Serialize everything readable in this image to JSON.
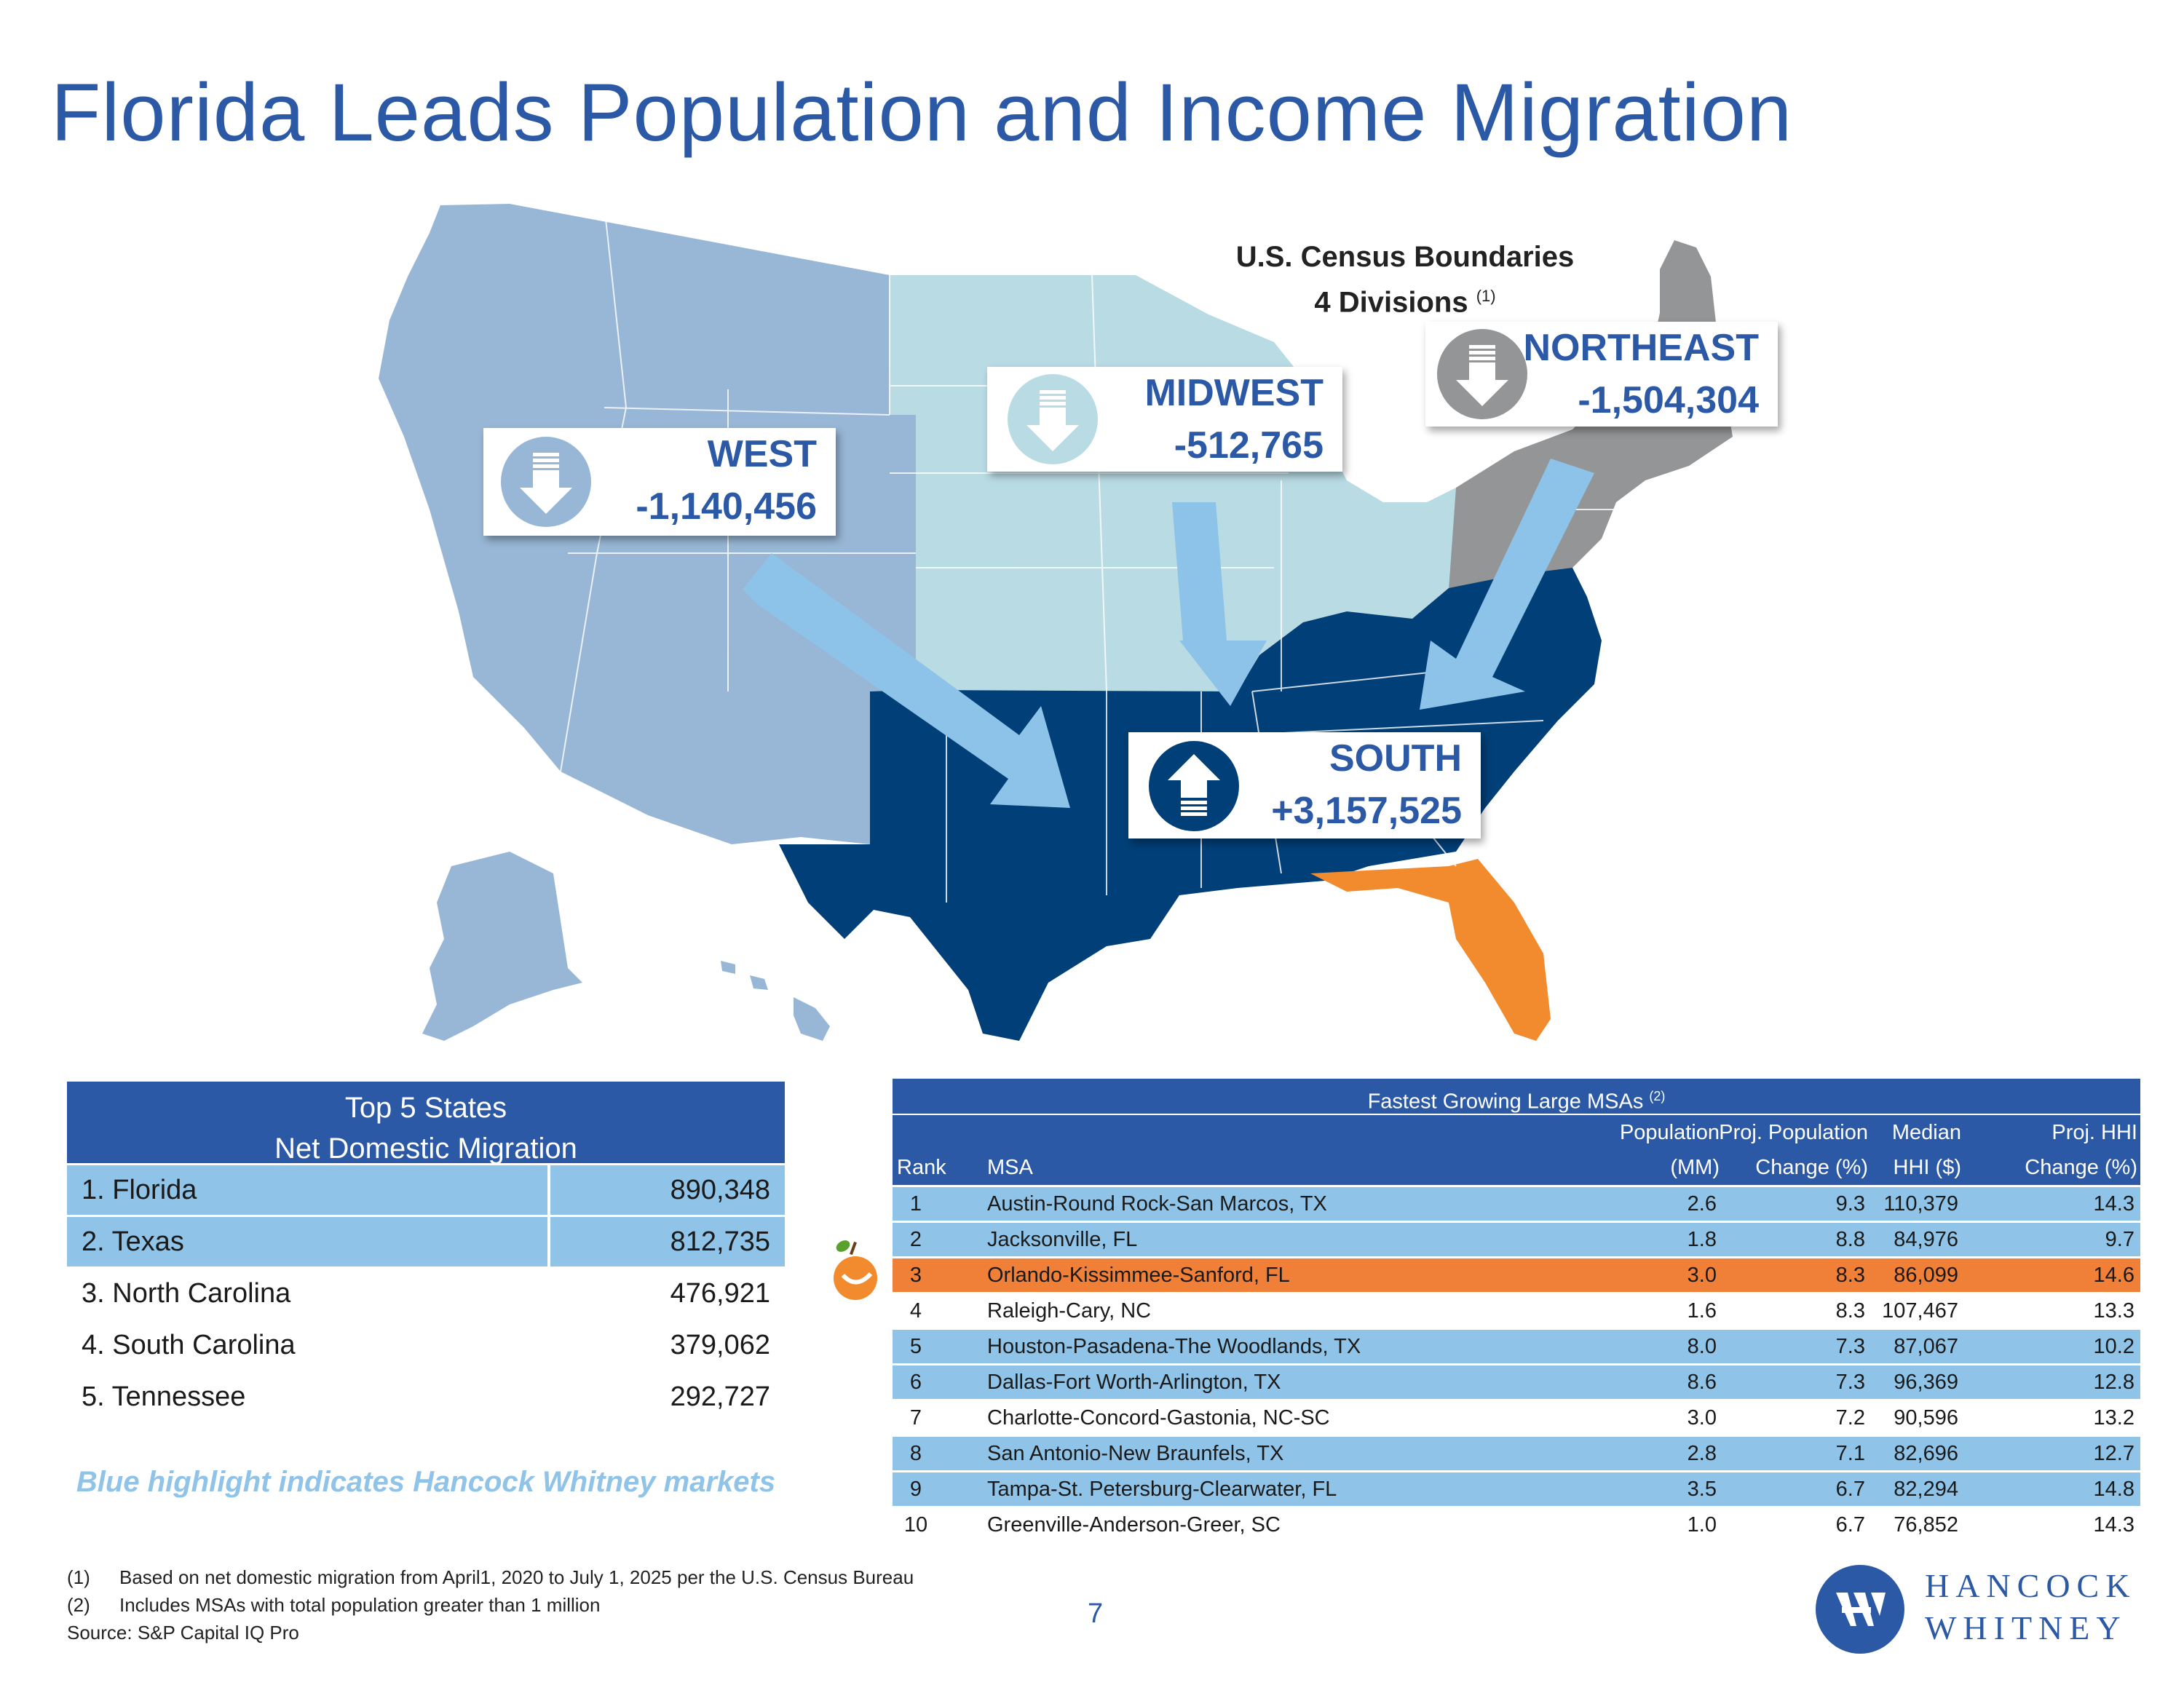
{
  "title": "Florida Leads Population and Income Migration",
  "census_box": {
    "line1": "U.S. Census Boundaries",
    "line2": "4 Divisions",
    "sup": "(1)"
  },
  "regions": {
    "west": {
      "name": "WEST",
      "value": "-1,140,456",
      "trend": "down"
    },
    "midwest": {
      "name": "MIDWEST",
      "value": "-512,765",
      "trend": "down"
    },
    "northeast": {
      "name": "NORTHEAST",
      "value": "-1,504,304",
      "trend": "down"
    },
    "south": {
      "name": "SOUTH",
      "value": "+3,157,525",
      "trend": "up"
    }
  },
  "map_colors": {
    "west": "#98b7d6",
    "midwest": "#b9dbe4",
    "northeast": "#939597",
    "south": "#003f77",
    "florida": "#f28b2e",
    "arrow": "#8dc3e8"
  },
  "top5": {
    "header_line1": "Top 5 States",
    "header_line2": "Net Domestic Migration",
    "rows": [
      {
        "label": "1. Florida",
        "value": "890,348",
        "highlight": true
      },
      {
        "label": "2. Texas",
        "value": "812,735",
        "highlight": true
      },
      {
        "label": "3. North Carolina",
        "value": "476,921",
        "highlight": false
      },
      {
        "label": "4. South Carolina",
        "value": "379,062",
        "highlight": false
      },
      {
        "label": "5. Tennessee",
        "value": "292,727",
        "highlight": false
      }
    ]
  },
  "highlight_note": "Blue highlight indicates Hancock Whitney markets",
  "msa_table": {
    "title": "Fastest Growing Large MSAs",
    "title_sup": "(2)",
    "headers": {
      "rank": "Rank",
      "msa": "MSA",
      "pop_1": "Population",
      "pop_2": "(MM)",
      "proj_1": "Proj. Population",
      "proj_2": "Change (%)",
      "hhi_1": "Median",
      "hhi_2": "HHI ($)",
      "hhichg_1": "Proj. HHI",
      "hhichg_2": "Change (%)"
    },
    "rows": [
      {
        "rank": "1",
        "msa": "Austin-Round Rock-San Marcos, TX",
        "pop": "2.6",
        "proj": "9.3",
        "hhi": "110,379",
        "hhichg": "14.3",
        "style": "hw"
      },
      {
        "rank": "2",
        "msa": "Jacksonville, FL",
        "pop": "1.8",
        "proj": "8.8",
        "hhi": "84,976",
        "hhichg": "9.7",
        "style": "hw"
      },
      {
        "rank": "3",
        "msa": "Orlando-Kissimmee-Sanford, FL",
        "pop": "3.0",
        "proj": "8.3",
        "hhi": "86,099",
        "hhichg": "14.6",
        "style": "fl"
      },
      {
        "rank": "4",
        "msa": "Raleigh-Cary, NC",
        "pop": "1.6",
        "proj": "8.3",
        "hhi": "107,467",
        "hhichg": "13.3",
        "style": ""
      },
      {
        "rank": "5",
        "msa": "Houston-Pasadena-The Woodlands, TX",
        "pop": "8.0",
        "proj": "7.3",
        "hhi": "87,067",
        "hhichg": "10.2",
        "style": "hw"
      },
      {
        "rank": "6",
        "msa": "Dallas-Fort Worth-Arlington, TX",
        "pop": "8.6",
        "proj": "7.3",
        "hhi": "96,369",
        "hhichg": "12.8",
        "style": "hw"
      },
      {
        "rank": "7",
        "msa": "Charlotte-Concord-Gastonia, NC-SC",
        "pop": "3.0",
        "proj": "7.2",
        "hhi": "90,596",
        "hhichg": "13.2",
        "style": ""
      },
      {
        "rank": "8",
        "msa": "San Antonio-New Braunfels, TX",
        "pop": "2.8",
        "proj": "7.1",
        "hhi": "82,696",
        "hhichg": "12.7",
        "style": "hw"
      },
      {
        "rank": "9",
        "msa": "Tampa-St. Petersburg-Clearwater, FL",
        "pop": "3.5",
        "proj": "6.7",
        "hhi": "82,294",
        "hhichg": "14.8",
        "style": "hw"
      },
      {
        "rank": "10",
        "msa": "Greenville-Anderson-Greer, SC",
        "pop": "1.0",
        "proj": "6.7",
        "hhi": "76,852",
        "hhichg": "14.3",
        "style": ""
      }
    ]
  },
  "footnotes": {
    "f1_num": "(1)",
    "f1": "Based on net domestic migration from April1, 2020 to July 1, 2025 per the U.S. Census Bureau",
    "f2_num": "(2)",
    "f2": "Includes MSAs with total population greater than 1 million",
    "source": "Source: S&P Capital IQ Pro"
  },
  "page_number": "7",
  "logo": {
    "line1": "HANCOCK",
    "line2": "WHITNEY"
  }
}
